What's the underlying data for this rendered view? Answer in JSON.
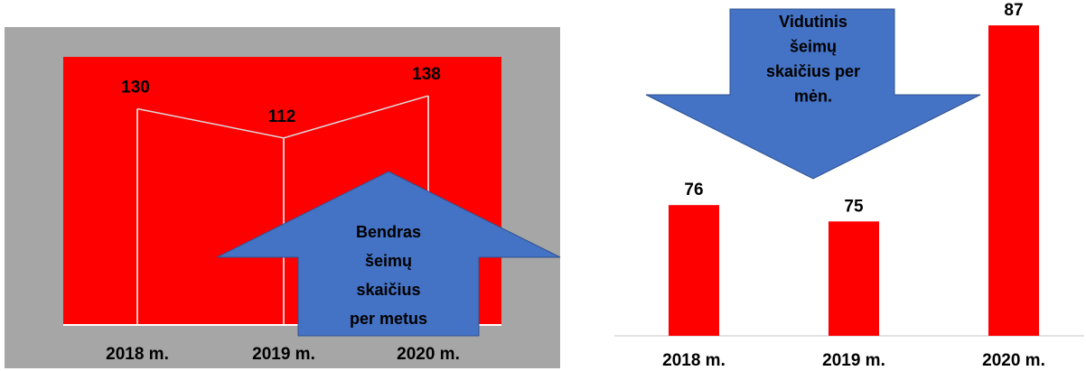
{
  "chart_data": [
    {
      "type": "line",
      "categories": [
        "2018 m.",
        "2019 m.",
        "2020 m."
      ],
      "values": [
        130,
        112,
        138
      ],
      "color": "#d9d9d9",
      "background": "#ff0000",
      "panel": "#a6a6a6",
      "ylim": [
        0,
        162
      ],
      "annotation": [
        "Bendras",
        "šeimų",
        "skaičius",
        "per metus"
      ]
    },
    {
      "type": "bar",
      "categories": [
        "2018 m.",
        "2019 m.",
        "2020 m."
      ],
      "values": [
        76,
        75,
        87
      ],
      "color": "#ff0000",
      "ylim": [
        68,
        88
      ],
      "annotation": [
        "Vidutinis",
        "šeimų",
        "skaičius per",
        "mėn."
      ]
    }
  ]
}
